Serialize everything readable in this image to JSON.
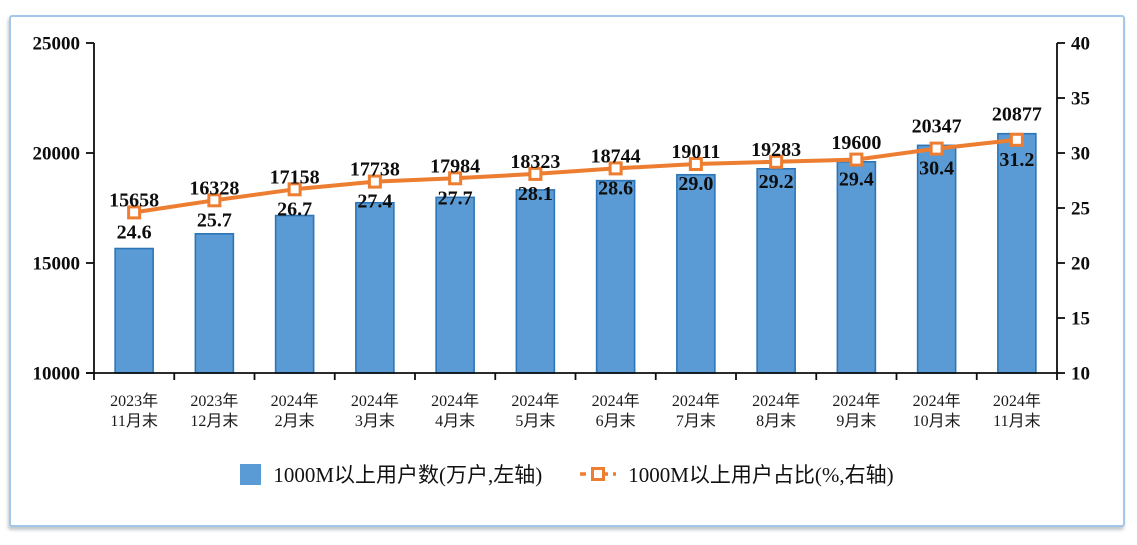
{
  "frame": {
    "border_color": "#a3c7e8"
  },
  "colors": {
    "bar_fill": "#5b9bd5",
    "bar_border": "#2e75b6",
    "line": "#ed7d31",
    "marker_fill": "#ffffff",
    "axis": "#0d0d0d"
  },
  "chart_data": {
    "type": "bar",
    "subtype": "bar+line combo",
    "categories": [
      [
        "2023年",
        "11月末"
      ],
      [
        "2023年",
        "12月末"
      ],
      [
        "2024年",
        "2月末"
      ],
      [
        "2024年",
        "3月末"
      ],
      [
        "2024年",
        "4月末"
      ],
      [
        "2024年",
        "5月末"
      ],
      [
        "2024年",
        "6月末"
      ],
      [
        "2024年",
        "7月末"
      ],
      [
        "2024年",
        "8月末"
      ],
      [
        "2024年",
        "9月末"
      ],
      [
        "2024年",
        "10月末"
      ],
      [
        "2024年",
        "11月末"
      ]
    ],
    "series": [
      {
        "name": "1000M以上用户数(万户,左轴)",
        "type": "bar",
        "axis": "left",
        "color": "#5b9bd5",
        "border_color": "#2e75b6",
        "values": [
          15658,
          16328,
          17158,
          17738,
          17984,
          18323,
          18744,
          19011,
          19283,
          19600,
          20347,
          20877
        ]
      },
      {
        "name": "1000M以上用户占比(%,右轴)",
        "type": "line",
        "axis": "right",
        "color": "#ed7d31",
        "marker": "square-white-center",
        "values": [
          24.6,
          25.7,
          26.7,
          27.4,
          27.7,
          28.1,
          28.6,
          29.0,
          29.2,
          29.4,
          30.4,
          31.2
        ]
      }
    ],
    "left_axis": {
      "min": 10000,
      "max": 25000,
      "ticks": [
        10000,
        15000,
        20000,
        25000
      ]
    },
    "right_axis": {
      "min": 10,
      "max": 40,
      "ticks": [
        10,
        15,
        20,
        25,
        30,
        35,
        40
      ]
    },
    "grid": false,
    "data_labels": true,
    "legend_position": "bottom",
    "title": ""
  },
  "legend": {
    "items": [
      {
        "label": "1000M以上用户数(万户,左轴)",
        "swatch": "blue-square"
      },
      {
        "label": "1000M以上用户占比(%,右轴)",
        "swatch": "orange-dash-square"
      }
    ]
  }
}
